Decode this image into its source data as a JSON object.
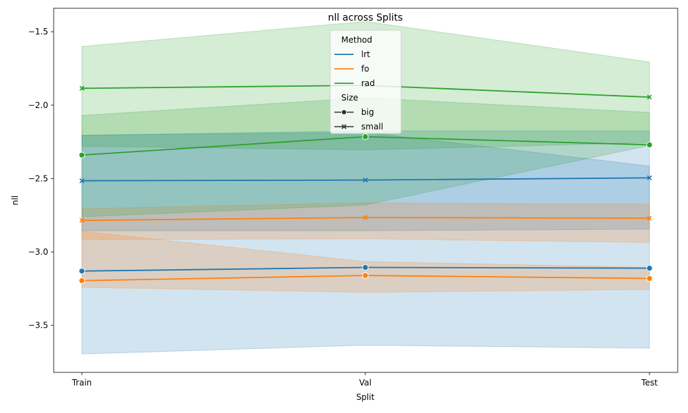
{
  "chart_data": {
    "type": "line",
    "title": "nll across Splits",
    "xlabel": "Split",
    "ylabel": "nll",
    "categories": [
      "Train",
      "Val",
      "Test"
    ],
    "ylim": [
      -3.82,
      -1.34
    ],
    "yticks": [
      -1.5,
      -2.0,
      -2.5,
      -3.0,
      -3.5
    ],
    "ytick_labels": [
      "−1.5",
      "−2.0",
      "−2.5",
      "−3.0",
      "−3.5"
    ],
    "grid": false,
    "legend": {
      "placement": "top-center",
      "hue_title": "Method",
      "style_title": "Size",
      "methods": [
        {
          "name": "lrt",
          "color": "#1f77b4"
        },
        {
          "name": "fo",
          "color": "#ff7f0e"
        },
        {
          "name": "rad",
          "color": "#2ca02c"
        }
      ],
      "sizes": [
        {
          "name": "big",
          "marker": "circle"
        },
        {
          "name": "small",
          "marker": "x"
        }
      ]
    },
    "series": [
      {
        "method": "lrt",
        "size": "big",
        "values": [
          -3.13,
          -3.105,
          -3.11
        ],
        "lower": [
          -3.695,
          -3.635,
          -3.655
        ],
        "upper": [
          -2.205,
          -2.185,
          -2.415
        ]
      },
      {
        "method": "lrt",
        "size": "small",
        "values": [
          -2.515,
          -2.51,
          -2.495
        ],
        "lower": [
          -2.855,
          -2.855,
          -2.845
        ],
        "upper": [
          -2.205,
          -2.175,
          -2.175
        ]
      },
      {
        "method": "fo",
        "size": "big",
        "values": [
          -3.195,
          -3.16,
          -3.18
        ],
        "lower": [
          -3.24,
          -3.275,
          -3.255
        ],
        "upper": [
          -2.86,
          -3.065,
          -3.105
        ]
      },
      {
        "method": "fo",
        "size": "small",
        "values": [
          -2.785,
          -2.765,
          -2.77
        ],
        "lower": [
          -2.915,
          -2.91,
          -2.935
        ],
        "upper": [
          -2.705,
          -2.665,
          -2.675
        ]
      },
      {
        "method": "rad",
        "size": "big",
        "values": [
          -2.34,
          -2.215,
          -2.27
        ],
        "lower": [
          -2.76,
          -2.68,
          -2.275
        ],
        "upper": [
          -2.07,
          -1.95,
          -2.05
        ]
      },
      {
        "method": "rad",
        "size": "small",
        "values": [
          -1.885,
          -1.865,
          -1.945
        ],
        "lower": [
          -2.28,
          -2.305,
          -2.255
        ],
        "upper": [
          -1.6,
          -1.43,
          -1.705
        ]
      }
    ]
  }
}
